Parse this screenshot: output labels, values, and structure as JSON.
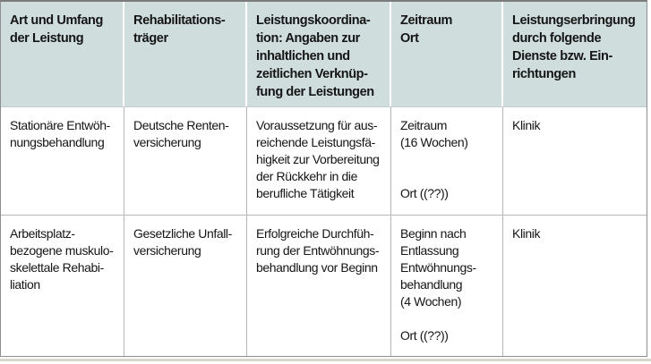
{
  "colors": {
    "header_bg": "#cfdddc",
    "page_rule": "#d9d6cd",
    "border": "#8f8f8f",
    "text": "#151515"
  },
  "table": {
    "columns": [
      {
        "label": "Art und Umfang\nder Leistung"
      },
      {
        "label": "Rehabilitations-\nträger"
      },
      {
        "label": "Leistungskoordina-\ntion: Angaben zur\ninhaltlichen und\nzeitlichen Verknüp-\nfung der Leistungen"
      },
      {
        "label": "Zeitraum\nOrt"
      },
      {
        "label": "Leistungserbringung\ndurch folgende\nDienste bzw. Ein-\nrichtungen"
      }
    ],
    "rows": [
      {
        "cells": [
          "Stationäre Entwöh-\nnungsbehandlung",
          "Deutsche Renten-\nversicherung",
          "Voraussetzung für aus-\nreichende Leistungsfä-\nhigkeit zur Vorbereitung\nder Rückkehr in die\nberufliche Tätigkeit",
          "Zeitraum\n(16 Wochen)\n\n\nOrt ((??))",
          "Klinik"
        ]
      },
      {
        "cells": [
          "Arbeitsplatz-\nbezogene muskulo-\nskelettale Rehabi-\nliation",
          "Gesetzliche Unfall-\nversicherung",
          "Erfolgreiche Durchfüh-\nrung der Entwöhnungs-\nbehandlung vor Beginn",
          "Beginn nach\nEntlassung\nEntwöhnungs-\nbehandlung\n(4 Wochen)\n\nOrt ((??))",
          "Klinik"
        ]
      }
    ]
  }
}
